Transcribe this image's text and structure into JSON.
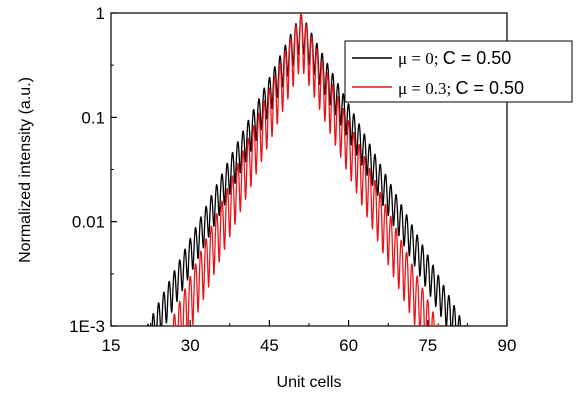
{
  "chart_data": {
    "type": "line",
    "xlabel": "Unit cells",
    "ylabel": "Normalized intensity (a.u.)",
    "xlim": [
      15,
      90
    ],
    "ylim": [
      0.001,
      1
    ],
    "yscale": "log",
    "xticks": [
      "15",
      "30",
      "45",
      "60",
      "75",
      "90"
    ],
    "yticks": [
      "1E-3",
      "0.01",
      "0.1",
      "1"
    ],
    "grid": false,
    "legend_position": "top-right",
    "peak_x": 51,
    "series": [
      {
        "name": "μ = 0; C = 0.50",
        "legend_greek": "μ = 0; ",
        "legend_rest": "C = 0.50",
        "color": "#000000",
        "x_range": [
          18,
          84
        ],
        "peak_value": 1.0,
        "decay_per_cell_left": 0.1029,
        "decay_per_cell_right": 0.0967,
        "oscillation_period": 1,
        "oscillation_depth": 0.55
      },
      {
        "name": "μ = 0.3; C = 0.50",
        "legend_greek": "μ = 0.3; ",
        "legend_rest": "C = 0.50",
        "color": "#e8161b",
        "x_range": [
          22,
          80
        ],
        "peak_value": 1.0,
        "decay_per_cell_left": 0.1202,
        "decay_per_cell_right": 0.1146,
        "oscillation_period": 1,
        "oscillation_depth": 0.7
      }
    ]
  }
}
